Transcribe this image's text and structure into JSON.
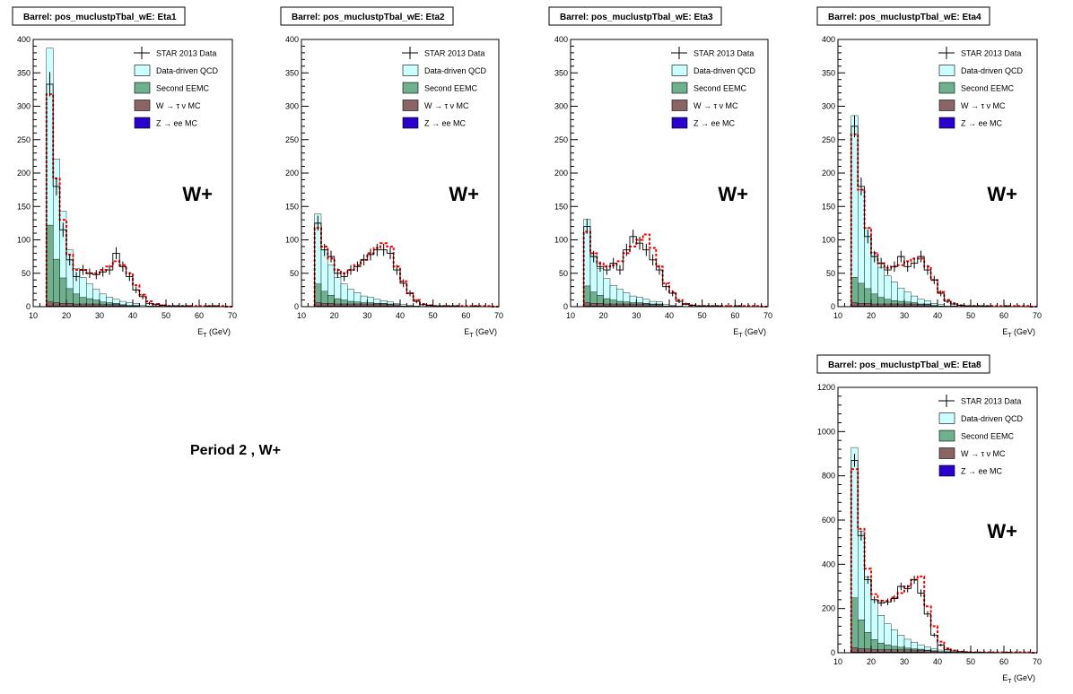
{
  "page_note": "Period 2 , W+",
  "colors": {
    "data": "#000000",
    "qcd": "#ccffff",
    "eemc": "#6fb08e",
    "wtau": "#8b6565",
    "zee": "#2a00cc",
    "total": "#ff0000"
  },
  "legend_entries": [
    {
      "key": "data",
      "label": "STAR 2013 Data",
      "style": "errorbar"
    },
    {
      "key": "qcd",
      "label": "Data-driven QCD",
      "style": "fill"
    },
    {
      "key": "eemc",
      "label": "Second EEMC",
      "style": "fill"
    },
    {
      "key": "wtau",
      "label": "W  →  τ  ν  MC",
      "style": "fill"
    },
    {
      "key": "zee",
      "label": "Z  →  ee MC",
      "style": "fill"
    }
  ],
  "chart_data": [
    {
      "type": "histogram",
      "title": "Barrel: pos_muclustpTbal_wE: Eta1",
      "annotation": "W+",
      "xlabel": "E",
      "xlabel_sub": "T",
      "xlabel_unit": "(GeV)",
      "xlim": [
        10,
        70
      ],
      "ylim": [
        0,
        400
      ],
      "x_ticks": [
        10,
        20,
        30,
        40,
        50,
        60,
        70
      ],
      "y_ticks": [
        0,
        50,
        100,
        150,
        200,
        250,
        300,
        350,
        400
      ],
      "bin_width": 2,
      "x_start": 14,
      "data": [
        333,
        180,
        115,
        70,
        45,
        55,
        50,
        48,
        52,
        55,
        80,
        60,
        45,
        25,
        15,
        5,
        3,
        2,
        1,
        1,
        1,
        1,
        0,
        0,
        1,
        1,
        0,
        0
      ],
      "total": [
        318,
        192,
        130,
        78,
        55,
        55,
        50,
        50,
        55,
        60,
        68,
        62,
        50,
        32,
        18,
        8,
        4,
        2,
        1,
        1,
        1,
        1,
        1,
        1,
        1,
        1,
        1,
        0
      ],
      "qcd": [
        265,
        150,
        100,
        58,
        38,
        30,
        22,
        16,
        12,
        8,
        6,
        5,
        4,
        3,
        2,
        1,
        1,
        0,
        0,
        0,
        0,
        0,
        0,
        0,
        0,
        0,
        0,
        0
      ],
      "eemc": [
        115,
        65,
        38,
        22,
        15,
        10,
        8,
        6,
        4,
        3,
        2,
        1,
        1,
        1,
        0,
        0,
        0,
        0,
        0,
        0,
        0,
        0,
        0,
        0,
        0,
        0,
        0,
        0
      ],
      "wtau": [
        6,
        5,
        4,
        4,
        3,
        3,
        3,
        3,
        2,
        2,
        2,
        1,
        1,
        1,
        0,
        0,
        0,
        0,
        0,
        0,
        0,
        0,
        0,
        0,
        0,
        0,
        0,
        0
      ],
      "zee": [
        1,
        1,
        1,
        1,
        1,
        1,
        1,
        1,
        1,
        1,
        1,
        1,
        0,
        0,
        0,
        0,
        0,
        0,
        0,
        0,
        0,
        0,
        0,
        0,
        0,
        0,
        0,
        0
      ]
    },
    {
      "type": "histogram",
      "title": "Barrel: pos_muclustpTbal_wE: Eta2",
      "annotation": "W+",
      "xlabel": "E",
      "xlabel_sub": "T",
      "xlabel_unit": "(GeV)",
      "xlim": [
        10,
        70
      ],
      "ylim": [
        0,
        400
      ],
      "x_ticks": [
        10,
        20,
        30,
        40,
        50,
        60,
        70
      ],
      "y_ticks": [
        0,
        50,
        100,
        150,
        200,
        250,
        300,
        350,
        400
      ],
      "bin_width": 2,
      "x_start": 14,
      "data": [
        125,
        85,
        75,
        50,
        45,
        55,
        60,
        70,
        78,
        85,
        85,
        80,
        55,
        35,
        20,
        8,
        3,
        2,
        1,
        1,
        1,
        1,
        0,
        0,
        1,
        0,
        0,
        0
      ],
      "total": [
        118,
        90,
        72,
        55,
        50,
        55,
        62,
        70,
        80,
        88,
        95,
        90,
        60,
        38,
        20,
        10,
        4,
        2,
        1,
        1,
        1,
        1,
        1,
        1,
        1,
        1,
        1,
        0
      ],
      "qcd": [
        105,
        62,
        45,
        32,
        24,
        18,
        14,
        10,
        8,
        6,
        4,
        3,
        2,
        2,
        1,
        1,
        0,
        0,
        0,
        0,
        0,
        0,
        0,
        0,
        0,
        0,
        0,
        0
      ],
      "eemc": [
        28,
        18,
        12,
        8,
        6,
        4,
        3,
        2,
        2,
        1,
        1,
        1,
        0,
        0,
        0,
        0,
        0,
        0,
        0,
        0,
        0,
        0,
        0,
        0,
        0,
        0,
        0,
        0
      ],
      "wtau": [
        5,
        4,
        4,
        3,
        3,
        3,
        3,
        3,
        3,
        3,
        3,
        2,
        2,
        1,
        1,
        0,
        0,
        0,
        0,
        0,
        0,
        0,
        0,
        0,
        0,
        0,
        0,
        0
      ],
      "zee": [
        1,
        1,
        1,
        1,
        1,
        1,
        1,
        1,
        1,
        1,
        1,
        1,
        1,
        0,
        0,
        0,
        0,
        0,
        0,
        0,
        0,
        0,
        0,
        0,
        0,
        0,
        0,
        0
      ]
    },
    {
      "type": "histogram",
      "title": "Barrel: pos_muclustpTbal_wE: Eta3",
      "annotation": "W+",
      "xlabel": "E",
      "xlabel_sub": "T",
      "xlabel_unit": "(GeV)",
      "xlim": [
        10,
        70
      ],
      "ylim": [
        0,
        400
      ],
      "x_ticks": [
        10,
        20,
        30,
        40,
        50,
        60,
        70
      ],
      "y_ticks": [
        0,
        50,
        100,
        150,
        200,
        250,
        300,
        350,
        400
      ],
      "bin_width": 2,
      "x_start": 14,
      "data": [
        120,
        75,
        60,
        55,
        65,
        55,
        85,
        105,
        95,
        85,
        70,
        55,
        30,
        20,
        8,
        4,
        2,
        1,
        1,
        1,
        1,
        0,
        0,
        1,
        0,
        0,
        0,
        0
      ],
      "total": [
        112,
        80,
        65,
        60,
        62,
        68,
        80,
        90,
        100,
        108,
        88,
        60,
        35,
        22,
        10,
        4,
        2,
        1,
        1,
        1,
        1,
        1,
        1,
        1,
        1,
        1,
        1,
        0
      ],
      "qcd": [
        100,
        58,
        40,
        30,
        22,
        18,
        14,
        10,
        8,
        6,
        4,
        3,
        2,
        1,
        1,
        0,
        0,
        0,
        0,
        0,
        0,
        0,
        0,
        0,
        0,
        0,
        0,
        0
      ],
      "eemc": [
        25,
        17,
        12,
        8,
        6,
        4,
        3,
        2,
        2,
        1,
        1,
        1,
        0,
        0,
        0,
        0,
        0,
        0,
        0,
        0,
        0,
        0,
        0,
        0,
        0,
        0,
        0,
        0
      ],
      "wtau": [
        5,
        4,
        4,
        3,
        3,
        3,
        3,
        3,
        3,
        3,
        2,
        2,
        1,
        1,
        0,
        0,
        0,
        0,
        0,
        0,
        0,
        0,
        0,
        0,
        0,
        0,
        0,
        0
      ],
      "zee": [
        1,
        1,
        1,
        1,
        1,
        1,
        1,
        1,
        1,
        1,
        1,
        1,
        0,
        0,
        0,
        0,
        0,
        0,
        0,
        0,
        0,
        0,
        0,
        0,
        0,
        0,
        0,
        0
      ]
    },
    {
      "type": "histogram",
      "title": "Barrel: pos_muclustpTbal_wE: Eta4",
      "annotation": "W+",
      "xlabel": "E",
      "xlabel_sub": "T",
      "xlabel_unit": "(GeV)",
      "xlim": [
        10,
        70
      ],
      "ylim": [
        0,
        400
      ],
      "x_ticks": [
        10,
        20,
        30,
        40,
        50,
        60,
        70
      ],
      "y_ticks": [
        0,
        50,
        100,
        150,
        200,
        250,
        300,
        350,
        400
      ],
      "bin_width": 2,
      "x_start": 14,
      "data": [
        270,
        180,
        105,
        75,
        65,
        55,
        60,
        75,
        60,
        65,
        75,
        55,
        40,
        20,
        8,
        4,
        2,
        1,
        1,
        1,
        1,
        0,
        0,
        1,
        0,
        0,
        0,
        0
      ],
      "total": [
        258,
        175,
        118,
        80,
        65,
        58,
        60,
        62,
        68,
        72,
        72,
        60,
        40,
        22,
        10,
        5,
        2,
        1,
        1,
        1,
        1,
        1,
        1,
        1,
        1,
        1,
        1,
        0
      ],
      "qcd": [
        242,
        140,
        90,
        62,
        45,
        35,
        28,
        20,
        15,
        10,
        7,
        5,
        3,
        2,
        1,
        1,
        0,
        0,
        0,
        0,
        0,
        0,
        0,
        0,
        0,
        0,
        0,
        0
      ],
      "eemc": [
        38,
        30,
        22,
        15,
        10,
        7,
        5,
        4,
        3,
        2,
        1,
        1,
        1,
        0,
        0,
        0,
        0,
        0,
        0,
        0,
        0,
        0,
        0,
        0,
        0,
        0,
        0,
        0
      ],
      "wtau": [
        5,
        4,
        4,
        3,
        3,
        3,
        3,
        3,
        3,
        3,
        2,
        2,
        1,
        1,
        0,
        0,
        0,
        0,
        0,
        0,
        0,
        0,
        0,
        0,
        0,
        0,
        0,
        0
      ],
      "zee": [
        1,
        1,
        1,
        1,
        1,
        1,
        1,
        1,
        1,
        1,
        1,
        1,
        0,
        0,
        0,
        0,
        0,
        0,
        0,
        0,
        0,
        0,
        0,
        0,
        0,
        0,
        0,
        0
      ]
    },
    {
      "type": "histogram",
      "title": "Barrel: pos_muclustpTbal_wE: Eta8",
      "annotation": "W+",
      "xlabel": "E",
      "xlabel_sub": "T",
      "xlabel_unit": "(GeV)",
      "xlim": [
        10,
        70
      ],
      "ylim": [
        0,
        1200
      ],
      "x_ticks": [
        10,
        20,
        30,
        40,
        50,
        60,
        70
      ],
      "y_ticks": [
        0,
        200,
        400,
        600,
        800,
        1000,
        1200
      ],
      "bin_width": 2,
      "x_start": 14,
      "data": [
        870,
        530,
        330,
        240,
        225,
        230,
        245,
        300,
        290,
        330,
        270,
        175,
        80,
        35,
        15,
        8,
        5,
        3,
        2,
        2,
        1,
        1,
        0,
        2,
        0,
        0,
        0,
        0
      ],
      "total": [
        830,
        560,
        380,
        265,
        235,
        235,
        250,
        270,
        300,
        330,
        345,
        210,
        120,
        50,
        20,
        10,
        5,
        3,
        2,
        2,
        2,
        2,
        2,
        2,
        2,
        2,
        2,
        0
      ],
      "qcd": [
        680,
        400,
        250,
        180,
        125,
        95,
        75,
        55,
        40,
        30,
        20,
        15,
        10,
        7,
        4,
        2,
        1,
        0,
        0,
        0,
        0,
        0,
        0,
        0,
        0,
        0,
        0,
        0
      ],
      "eemc": [
        225,
        130,
        75,
        45,
        30,
        22,
        16,
        12,
        8,
        6,
        4,
        3,
        2,
        1,
        1,
        0,
        0,
        0,
        0,
        0,
        0,
        0,
        0,
        0,
        0,
        0,
        0,
        0
      ],
      "wtau": [
        20,
        16,
        14,
        12,
        11,
        11,
        10,
        10,
        10,
        9,
        9,
        7,
        5,
        3,
        2,
        1,
        0,
        0,
        0,
        0,
        0,
        0,
        0,
        0,
        0,
        0,
        0,
        0
      ],
      "zee": [
        3,
        3,
        3,
        3,
        3,
        3,
        3,
        3,
        3,
        3,
        3,
        2,
        2,
        1,
        1,
        0,
        0,
        0,
        0,
        0,
        0,
        0,
        0,
        0,
        0,
        0,
        0,
        0
      ]
    }
  ]
}
